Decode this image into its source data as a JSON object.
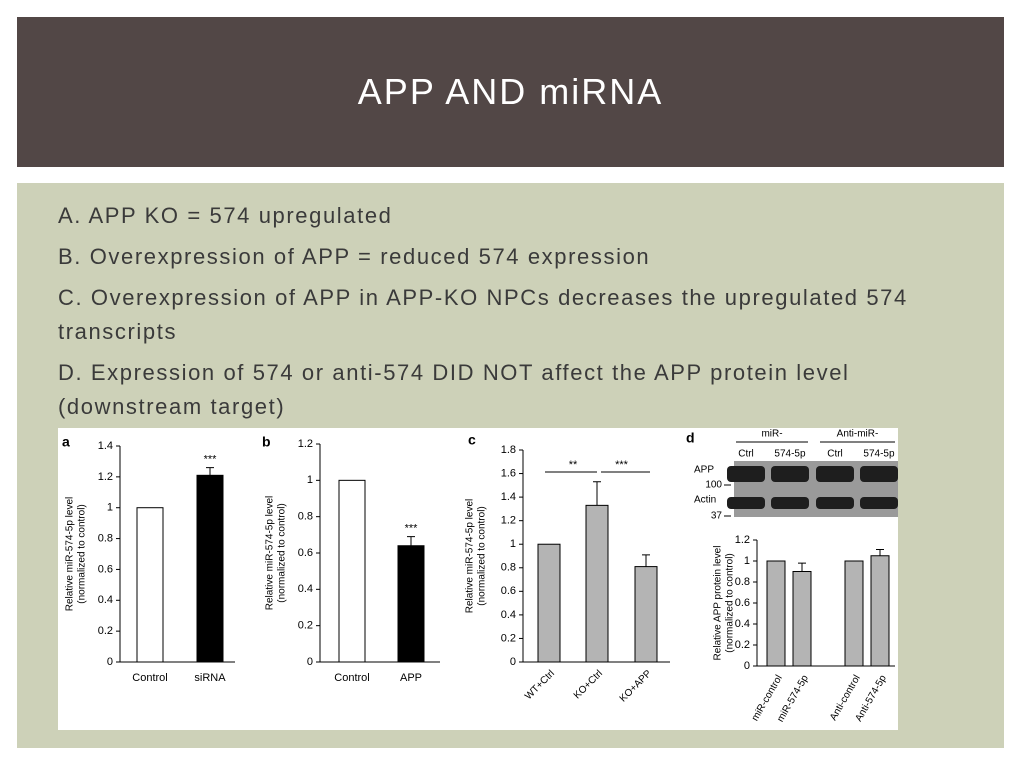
{
  "header": {
    "title": "APP AND miRNA"
  },
  "bullets": [
    "A. APP KO = 574 upregulated",
    "B. Overexpression of APP = reduced 574 expression",
    "C. Overexpression of APP in APP-KO NPCs decreases the upregulated 574 transcripts",
    "D. Expression of 574 or anti-574 DID NOT affect the APP protein level (downstream target)"
  ],
  "figure": {
    "panels": [
      {
        "label": "a",
        "type": "bar",
        "ylabel": [
          "Relative miR-574-5p level",
          "(normalized to control)"
        ],
        "categories": [
          "Control",
          "siRNA"
        ],
        "values": [
          1,
          1.21
        ],
        "errors": [
          null,
          0.05
        ],
        "colors": [
          "#ffffff",
          "#000000"
        ],
        "significance": [
          null,
          "***"
        ],
        "ylim": [
          0,
          1.4
        ],
        "yticks": [
          0,
          0.2,
          0.4,
          0.6,
          0.8,
          1,
          1.2,
          1.4
        ]
      },
      {
        "label": "b",
        "type": "bar",
        "ylabel": [
          "Relative miR-574-5p level",
          "(normalized to control)"
        ],
        "categories": [
          "Control",
          "APP"
        ],
        "values": [
          1,
          0.64
        ],
        "errors": [
          null,
          0.05
        ],
        "colors": [
          "#ffffff",
          "#000000"
        ],
        "significance": [
          null,
          "***"
        ],
        "ylim": [
          0,
          1.2
        ],
        "yticks": [
          0,
          0.2,
          0.4,
          0.6,
          0.8,
          1,
          1.2
        ]
      },
      {
        "label": "c",
        "type": "bar",
        "ylabel": [
          "Relative miR-574-5p level",
          "(normalized to control)"
        ],
        "categories": [
          "WT+Ctrl",
          "KO+Ctrl",
          "KO+APP"
        ],
        "values": [
          1,
          1.33,
          0.81
        ],
        "errors": [
          null,
          0.2,
          0.1
        ],
        "colors": [
          "#b4b4b4",
          "#b4b4b4",
          "#b4b4b4"
        ],
        "comparisons": [
          {
            "between": [
              "WT+Ctrl",
              "KO+Ctrl"
            ],
            "label": "**"
          },
          {
            "between": [
              "KO+Ctrl",
              "KO+APP"
            ],
            "label": "***"
          }
        ],
        "ylim": [
          0,
          1.8
        ],
        "yticks": [
          0,
          0.2,
          0.4,
          0.6,
          0.8,
          1,
          1.2,
          1.4,
          1.6,
          1.8
        ]
      },
      {
        "label": "d",
        "type": "bar",
        "ylabel": [
          "Relative APP protein level",
          "(normalized to control)"
        ],
        "blot": {
          "groups": [
            "miR-",
            "Anti-miR-"
          ],
          "lanes": [
            "Ctrl",
            "574-5p",
            "Ctrl",
            "574-5p"
          ],
          "rows": [
            {
              "name": "APP",
              "marker": "100"
            },
            {
              "name": "Actin",
              "marker": "37"
            }
          ]
        },
        "categories": [
          "miR-control",
          "miR-574-5p",
          "Anti-control",
          "Anti-574-5p"
        ],
        "values": [
          1,
          0.9,
          1,
          1.05
        ],
        "errors": [
          null,
          0.08,
          null,
          0.06
        ],
        "colors": [
          "#b4b4b4",
          "#b4b4b4",
          "#b4b4b4",
          "#b4b4b4"
        ],
        "ylim": [
          0,
          1.2
        ],
        "yticks": [
          0,
          0.2,
          0.4,
          0.6,
          0.8,
          1,
          1.2
        ]
      }
    ]
  }
}
